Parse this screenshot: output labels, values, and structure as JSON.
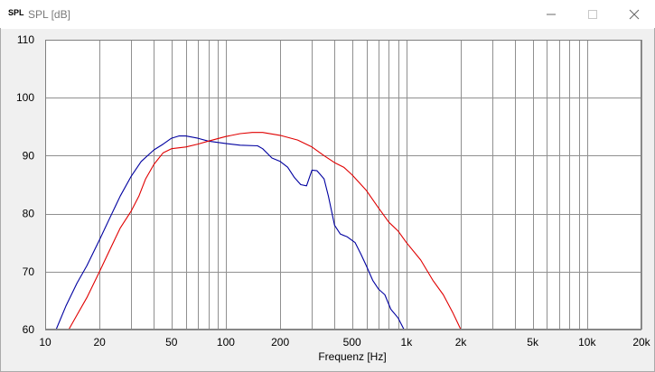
{
  "window": {
    "app_icon_text": "SPL",
    "title": "SPL [dB]"
  },
  "icons": {
    "minimize": "minimize-icon",
    "maximize": "maximize-icon",
    "close": "close-icon"
  },
  "colors": {
    "series_blue": "#0000a0",
    "series_red": "#e00000",
    "grid": "#909090",
    "plot_bg": "#ffffff"
  },
  "chart_data": {
    "type": "line",
    "xlabel": "Frequenz [Hz]",
    "ylabel": "",
    "x_scale": "log",
    "xlim": [
      10,
      20000
    ],
    "ylim": [
      60,
      110
    ],
    "grid": true,
    "y_ticks": [
      60,
      70,
      80,
      90,
      100,
      110
    ],
    "y_tick_labels": [
      "60",
      "70",
      "80",
      "90",
      "100",
      "110"
    ],
    "x_ticks": [
      10,
      20,
      50,
      100,
      200,
      500,
      1000,
      2000,
      5000,
      10000,
      20000
    ],
    "x_tick_labels": [
      "10",
      "20",
      "50",
      "100",
      "200",
      "500",
      "1k",
      "2k",
      "5k",
      "10k",
      "20k"
    ],
    "series": [
      {
        "color": "#0000a0",
        "points": [
          [
            11.5,
            60
          ],
          [
            13,
            64
          ],
          [
            15,
            68
          ],
          [
            17,
            71
          ],
          [
            20,
            75.5
          ],
          [
            23,
            79.5
          ],
          [
            26,
            83
          ],
          [
            30,
            86.5
          ],
          [
            34,
            89
          ],
          [
            40,
            91
          ],
          [
            45,
            92
          ],
          [
            50,
            93
          ],
          [
            55,
            93.4
          ],
          [
            60,
            93.4
          ],
          [
            70,
            93
          ],
          [
            80,
            92.5
          ],
          [
            100,
            92.1
          ],
          [
            120,
            91.8
          ],
          [
            150,
            91.7
          ],
          [
            160,
            91.2
          ],
          [
            180,
            89.6
          ],
          [
            200,
            89
          ],
          [
            220,
            88
          ],
          [
            240,
            86.2
          ],
          [
            260,
            85
          ],
          [
            280,
            84.8
          ],
          [
            300,
            87.5
          ],
          [
            320,
            87.4
          ],
          [
            350,
            86
          ],
          [
            370,
            83
          ],
          [
            400,
            78
          ],
          [
            430,
            76.5
          ],
          [
            470,
            76
          ],
          [
            520,
            75
          ],
          [
            560,
            73
          ],
          [
            600,
            71
          ],
          [
            650,
            68.5
          ],
          [
            700,
            67
          ],
          [
            760,
            66
          ],
          [
            820,
            63.5
          ],
          [
            900,
            62
          ],
          [
            970,
            60
          ]
        ]
      },
      {
        "color": "#e00000",
        "points": [
          [
            13.5,
            60
          ],
          [
            15,
            62.5
          ],
          [
            17,
            65.5
          ],
          [
            20,
            70
          ],
          [
            23,
            74
          ],
          [
            26,
            77.5
          ],
          [
            30,
            80.5
          ],
          [
            33,
            83
          ],
          [
            36,
            86
          ],
          [
            40,
            88.5
          ],
          [
            45,
            90.5
          ],
          [
            50,
            91.2
          ],
          [
            60,
            91.5
          ],
          [
            70,
            92
          ],
          [
            80,
            92.5
          ],
          [
            100,
            93.3
          ],
          [
            120,
            93.8
          ],
          [
            140,
            94
          ],
          [
            160,
            94
          ],
          [
            200,
            93.5
          ],
          [
            250,
            92.7
          ],
          [
            300,
            91.5
          ],
          [
            350,
            90
          ],
          [
            400,
            88.8
          ],
          [
            450,
            88
          ],
          [
            500,
            86.7
          ],
          [
            600,
            84
          ],
          [
            700,
            81
          ],
          [
            800,
            78.5
          ],
          [
            900,
            77
          ],
          [
            1000,
            75
          ],
          [
            1200,
            72
          ],
          [
            1400,
            68.5
          ],
          [
            1600,
            66
          ],
          [
            1800,
            63
          ],
          [
            2000,
            60
          ]
        ]
      }
    ]
  }
}
